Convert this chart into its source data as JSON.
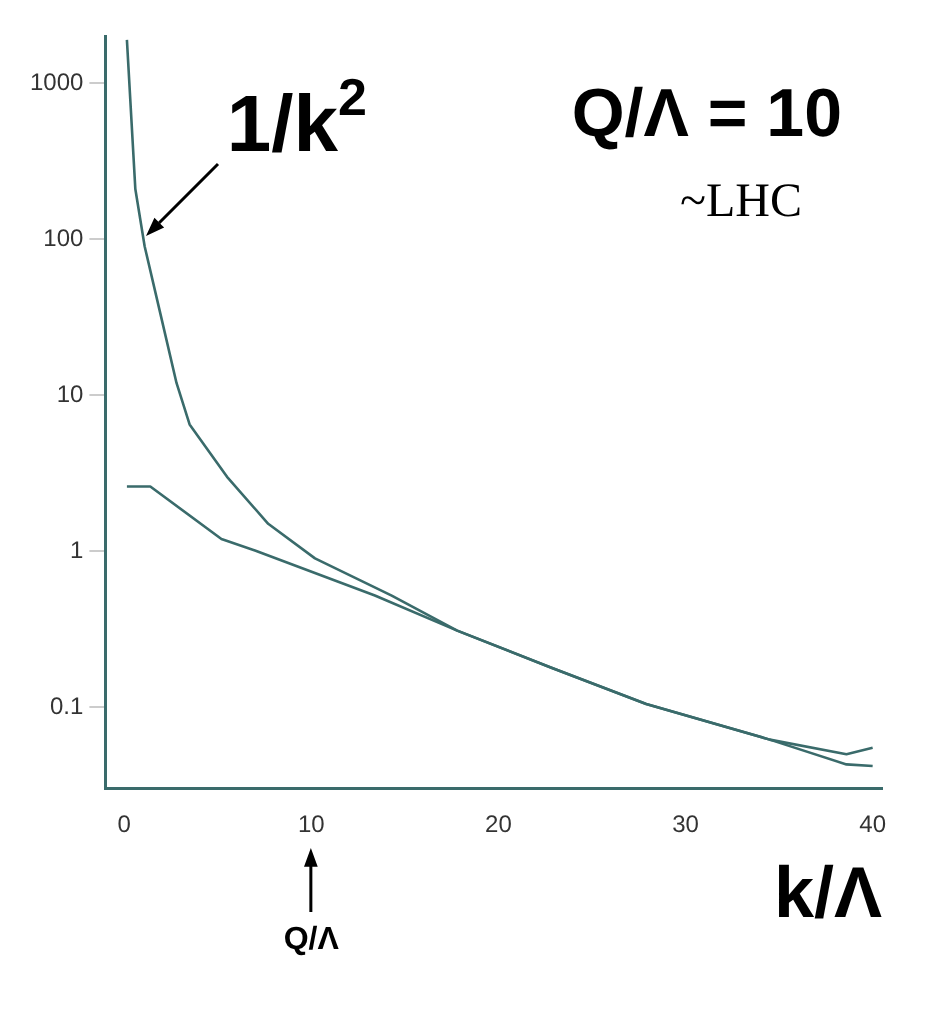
{
  "chart_data": {
    "type": "line",
    "title": "Q/Λ = 10",
    "subtitle": "~LHC",
    "xlabel": "k/Λ",
    "annotations": [
      {
        "text": "1/k$^{2}$",
        "x": 1,
        "y": 100
      },
      "Q/Λ"
    ],
    "series": [
      {
        "color": "#3a6b6b",
        "x": [
          0.15,
          0.6,
          1.1,
          2,
          2.8,
          3.5,
          5.5,
          7.7,
          10.2,
          14.3,
          17.8,
          22.8,
          27.9,
          34.5,
          38.6,
          40
        ],
        "values": [
          1900,
          210,
          90,
          31,
          12,
          6.5,
          3,
          1.5,
          0.9,
          0.52,
          0.31,
          0.18,
          0.105,
          0.062,
          0.05,
          0.055
        ]
      },
      {
        "color": "#3a6b6b",
        "x": [
          0.15,
          1.4,
          5.2,
          7.1,
          13.4,
          17.8,
          22.8,
          27.9,
          34.5,
          38.6,
          40
        ],
        "values": [
          2.6,
          2.6,
          1.2,
          1.0,
          0.52,
          0.31,
          0.18,
          0.105,
          0.062,
          0.043,
          0.042
        ]
      }
    ],
    "xlim": [
      -1,
      40.5
    ],
    "ylim": [
      0.03,
      2000
    ],
    "xticks": [
      0,
      10,
      20,
      30,
      40
    ],
    "yticks": [
      0.1,
      1,
      10,
      100,
      1000
    ],
    "log": "y",
    "grid": false,
    "legend": false,
    "marker": "none",
    "line_style": "solid"
  }
}
